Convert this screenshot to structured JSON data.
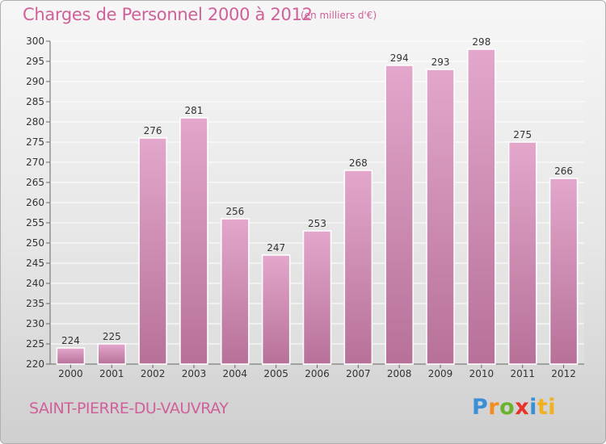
{
  "header": {
    "title": "Charges de Personnel 2000 à 2012",
    "subtitle": "(en milliers d'€)"
  },
  "footer": {
    "commune": "SAINT-PIERRE-DU-VAUVRAY",
    "logo_letters": [
      "P",
      "r",
      "o",
      "x",
      "i",
      "ti"
    ]
  },
  "colors": {
    "accent": "#d0609a",
    "bar_top": "#e3a7cc",
    "bar_bottom": "#b77199"
  },
  "chart_data": {
    "type": "bar",
    "title": "Charges de Personnel 2000 à 2012",
    "unit": "(en milliers d'€)",
    "xlabel": "",
    "ylabel": "",
    "categories": [
      "2000",
      "2001",
      "2002",
      "2003",
      "2004",
      "2005",
      "2006",
      "2007",
      "2008",
      "2009",
      "2010",
      "2011",
      "2012"
    ],
    "values": [
      224,
      225,
      276,
      281,
      256,
      247,
      253,
      268,
      294,
      293,
      298,
      275,
      266
    ],
    "ylim": [
      220,
      300
    ],
    "ytick_step": 5,
    "grid": true
  }
}
